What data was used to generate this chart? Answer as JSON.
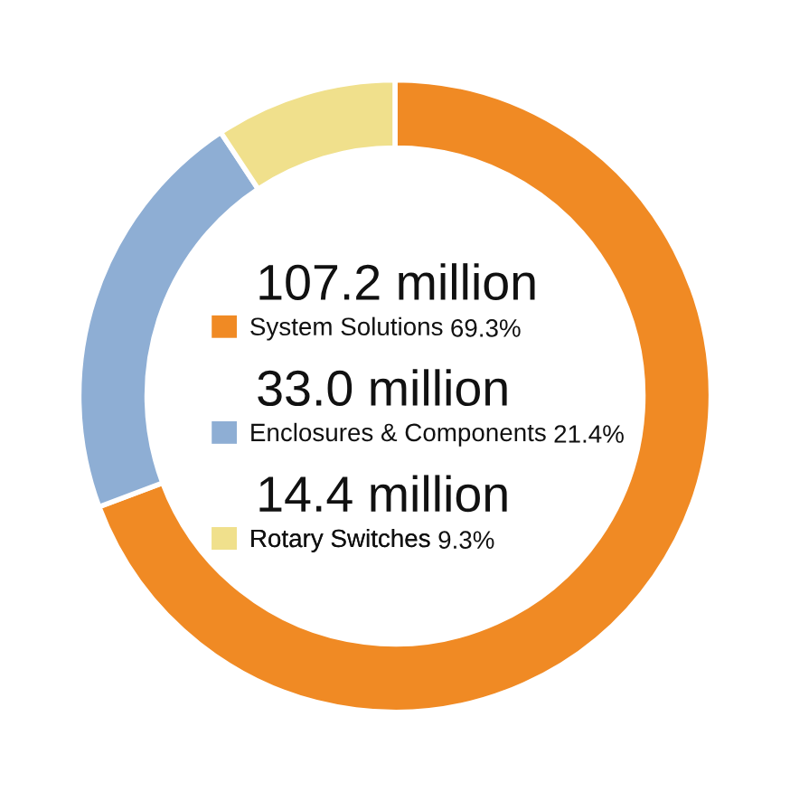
{
  "chart_data": {
    "type": "donut",
    "categories": [
      "System Solutions",
      "Enclosures & Components",
      "Rotary Switches"
    ],
    "values": [
      69.3,
      21.4,
      9.3
    ],
    "colors": [
      "#f08a24",
      "#8eaed4",
      "#f0e08c"
    ],
    "annotations": [
      "107.2 million",
      "69.3%",
      "33.0 million",
      "21.4%",
      "14.4 million",
      "9.3%"
    ],
    "legend": "center"
  }
}
